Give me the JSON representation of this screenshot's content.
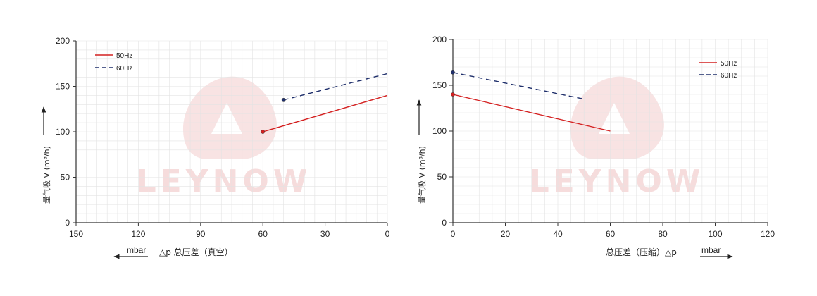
{
  "watermark": {
    "text": "LEYNOW",
    "color": "#f4d6d6"
  },
  "colors": {
    "grid": "#e3e3e3",
    "axis": "#333333",
    "s50": "#d42020",
    "s60": "#1f2f6b"
  },
  "chart_data": [
    {
      "type": "line",
      "title": "",
      "xlabel": "△p 总压差（真空）",
      "xunit": "mbar",
      "ylabel": "量气吸 V (m³/h)",
      "xlim": [
        150,
        0
      ],
      "ylim": [
        0,
        200
      ],
      "x_reversed": true,
      "xticks": [
        150,
        120,
        90,
        60,
        30,
        0
      ],
      "yticks": [
        0,
        50,
        100,
        150,
        200
      ],
      "grid": true,
      "legend": "top-left",
      "series": [
        {
          "name": "50Hz",
          "style": "solid",
          "color": "#d42020",
          "x": [
            60,
            0
          ],
          "y": [
            100,
            140
          ]
        },
        {
          "name": "60Hz",
          "style": "dashed",
          "color": "#1f2f6b",
          "x": [
            50,
            0
          ],
          "y": [
            135,
            164
          ]
        }
      ]
    },
    {
      "type": "line",
      "title": "",
      "xlabel": "总压差（压缩）△p",
      "xunit": "mbar",
      "ylabel": "量气吸 V (m³/h)",
      "xlim": [
        0,
        120
      ],
      "ylim": [
        0,
        200
      ],
      "x_reversed": false,
      "xticks": [
        0,
        20,
        40,
        60,
        80,
        100,
        120
      ],
      "yticks": [
        0,
        50,
        100,
        150,
        200
      ],
      "grid": true,
      "legend": "top-right",
      "series": [
        {
          "name": "50Hz",
          "style": "solid",
          "color": "#d42020",
          "x": [
            0,
            60
          ],
          "y": [
            140,
            100
          ]
        },
        {
          "name": "60Hz",
          "style": "dashed",
          "color": "#1f2f6b",
          "x": [
            0,
            50
          ],
          "y": [
            164,
            135
          ]
        }
      ]
    }
  ]
}
